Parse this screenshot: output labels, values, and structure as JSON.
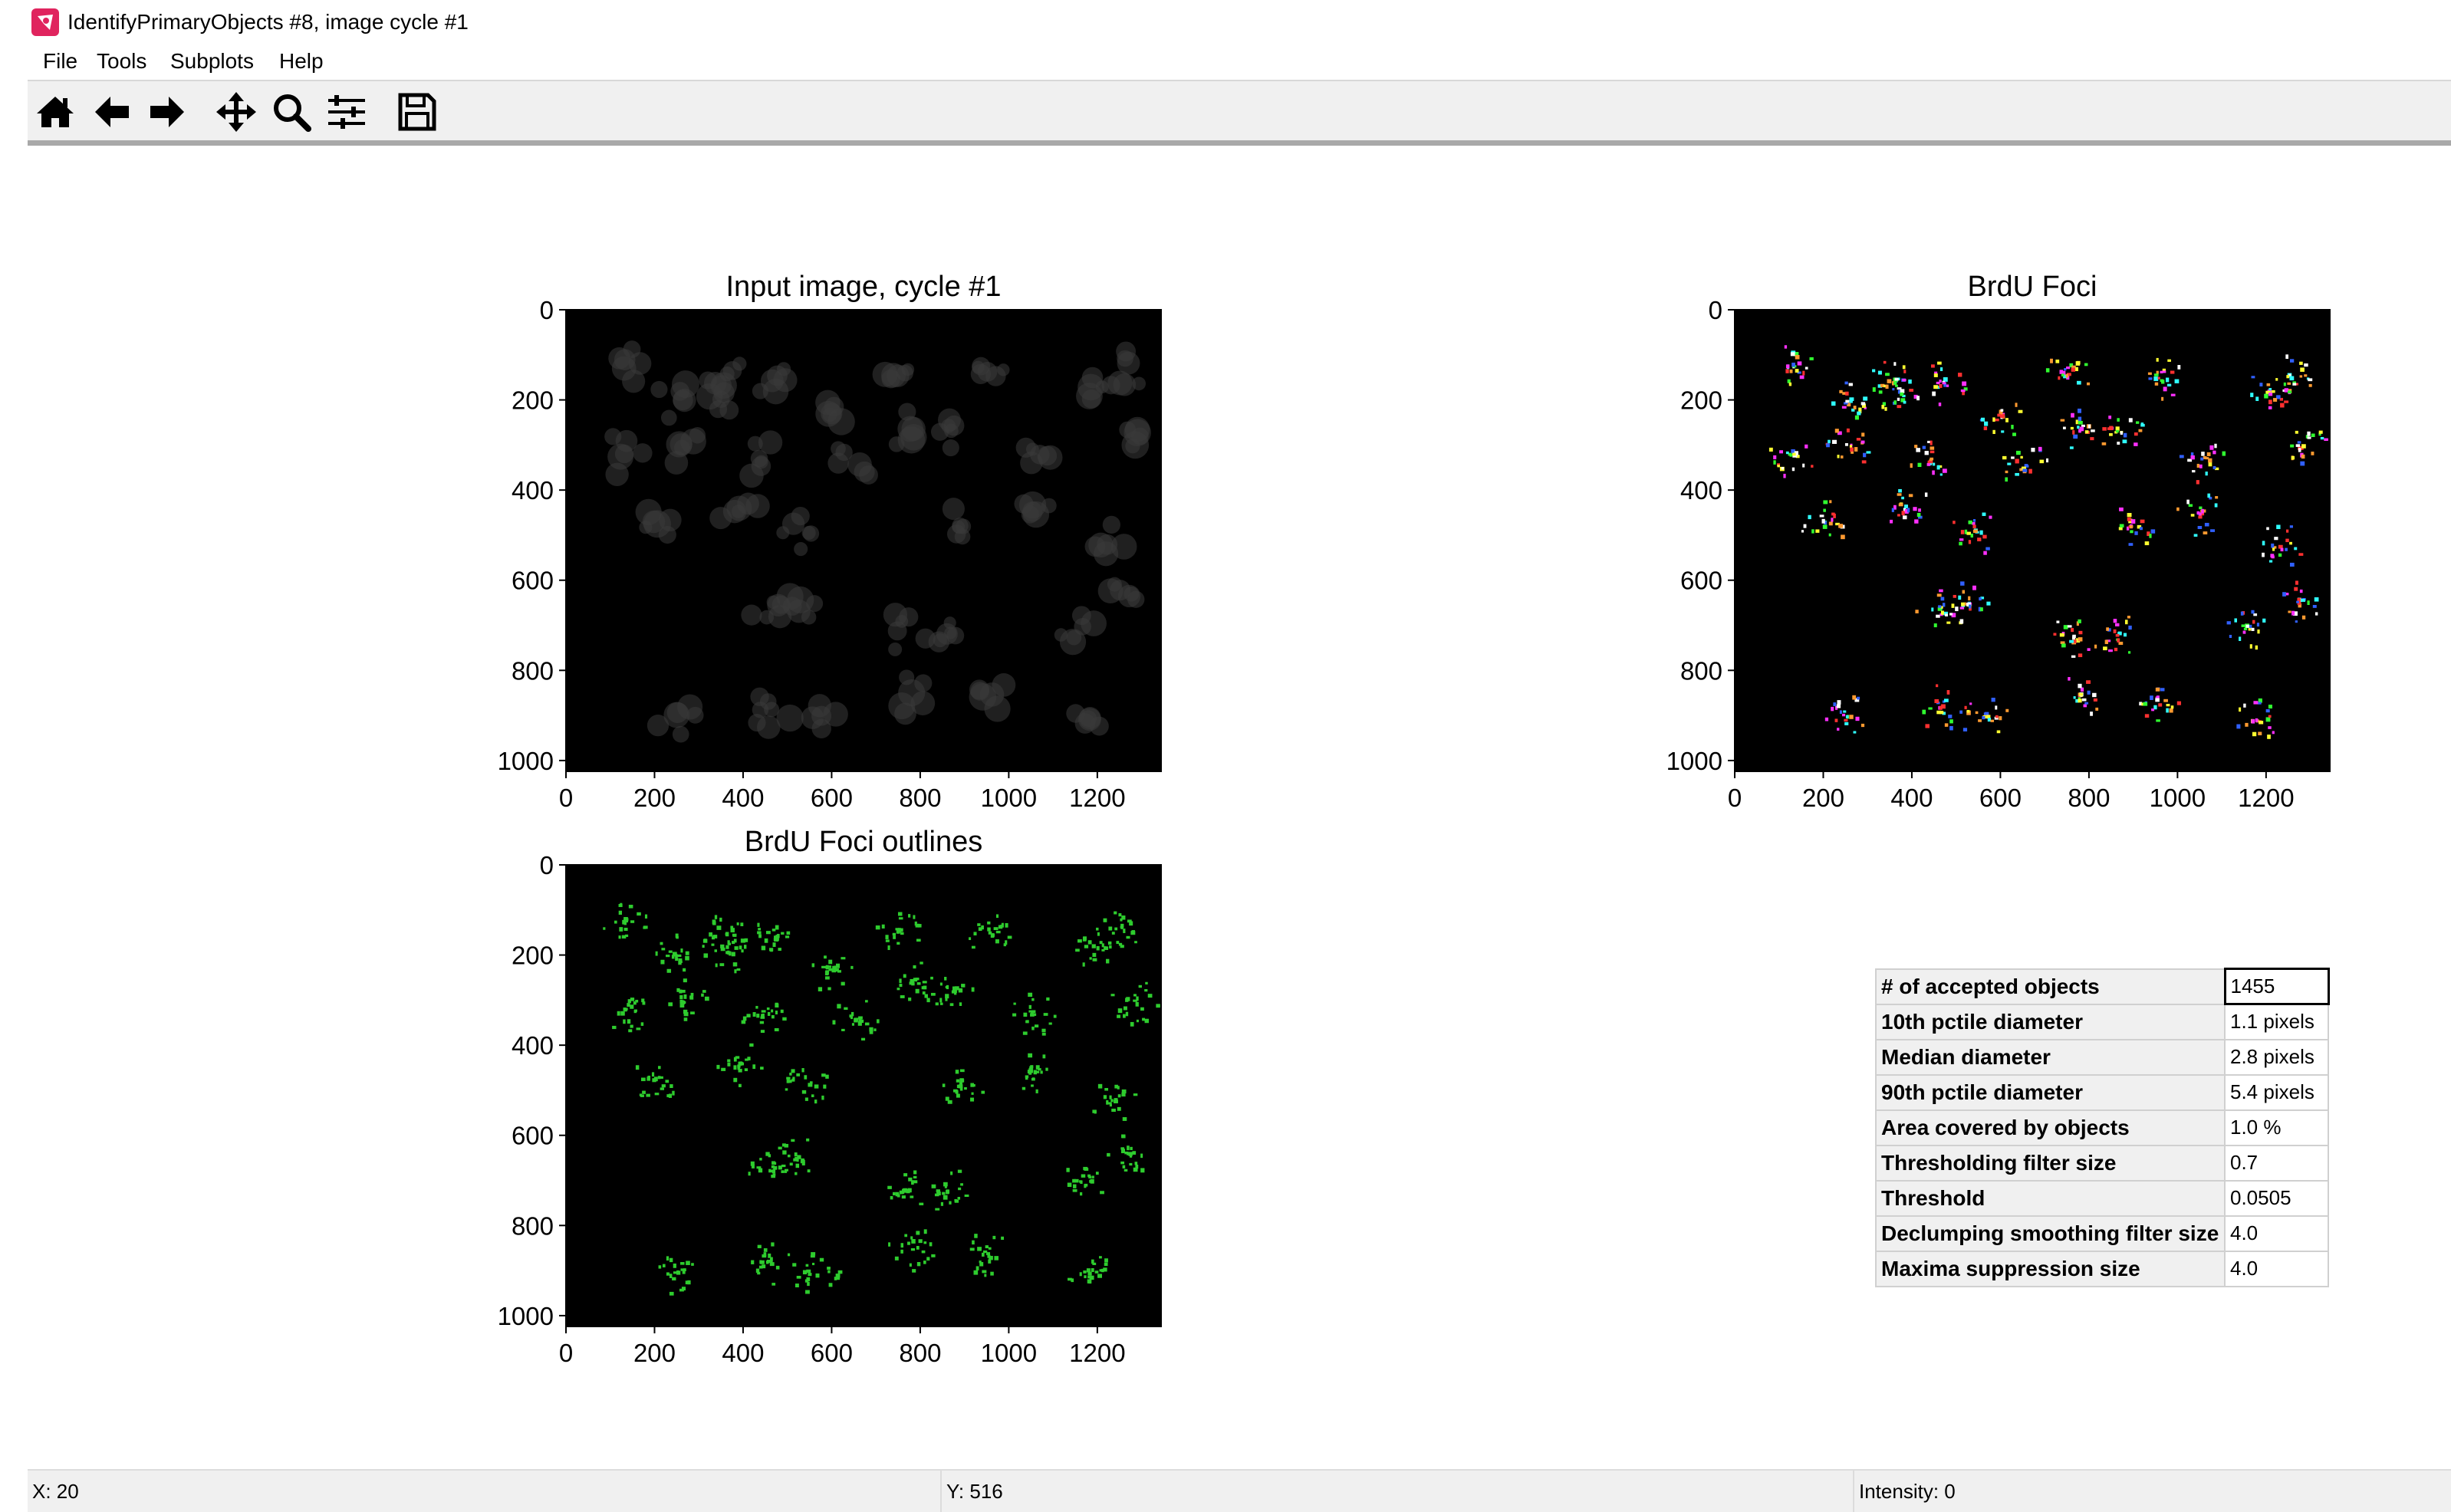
{
  "window": {
    "title": "IdentifyPrimaryObjects #8, image cycle #1",
    "icon": "cellprofiler-app-icon"
  },
  "menubar": {
    "items": [
      {
        "label": "File"
      },
      {
        "label": "Tools"
      },
      {
        "label": "Subplots"
      },
      {
        "label": "Help"
      }
    ]
  },
  "toolbar": {
    "buttons": [
      {
        "name": "home-icon"
      },
      {
        "name": "back-arrow-icon"
      },
      {
        "name": "forward-arrow-icon"
      },
      {
        "name": "pan-icon"
      },
      {
        "name": "zoom-icon"
      },
      {
        "name": "configure-subplots-icon"
      },
      {
        "name": "save-icon"
      }
    ]
  },
  "plots": [
    {
      "title": "Input image, cycle #1",
      "kind": "grayscale",
      "x_ticks": [
        "0",
        "200",
        "400",
        "600",
        "800",
        "1000",
        "1200"
      ],
      "y_ticks": [
        "0",
        "200",
        "400",
        "600",
        "800",
        "1000"
      ]
    },
    {
      "title": "BrdU Foci",
      "kind": "labels",
      "x_ticks": [
        "0",
        "200",
        "400",
        "600",
        "800",
        "1000",
        "1200"
      ],
      "y_ticks": [
        "0",
        "200",
        "400",
        "600",
        "800",
        "1000"
      ]
    },
    {
      "title": "BrdU Foci outlines",
      "kind": "outlines",
      "x_ticks": [
        "0",
        "200",
        "400",
        "600",
        "800",
        "1000",
        "1200"
      ],
      "y_ticks": [
        "0",
        "200",
        "400",
        "600",
        "800",
        "1000"
      ]
    }
  ],
  "image_extent": {
    "x": [
      0,
      1344
    ],
    "y": [
      0,
      1024
    ]
  },
  "stats": [
    {
      "label": "# of accepted objects",
      "value": "1455"
    },
    {
      "label": "10th pctile diameter",
      "value": "1.1 pixels"
    },
    {
      "label": "Median diameter",
      "value": "2.8 pixels"
    },
    {
      "label": "90th pctile diameter",
      "value": "5.4 pixels"
    },
    {
      "label": "Area covered by objects",
      "value": "1.0 %"
    },
    {
      "label": "Thresholding filter size",
      "value": "0.7"
    },
    {
      "label": "Threshold",
      "value": "0.0505"
    },
    {
      "label": "Declumping smoothing filter size",
      "value": "4.0"
    },
    {
      "label": "Maxima suppression size",
      "value": "4.0"
    }
  ],
  "statusbar": {
    "x": "X: 20",
    "y": "Y: 516",
    "intensity": "Intensity: 0"
  },
  "colors": {
    "outline": "#2ecc2e",
    "toolbar_bg": "#f0f0f0",
    "image_bg": "#000000",
    "app_icon": "#e0245e"
  }
}
